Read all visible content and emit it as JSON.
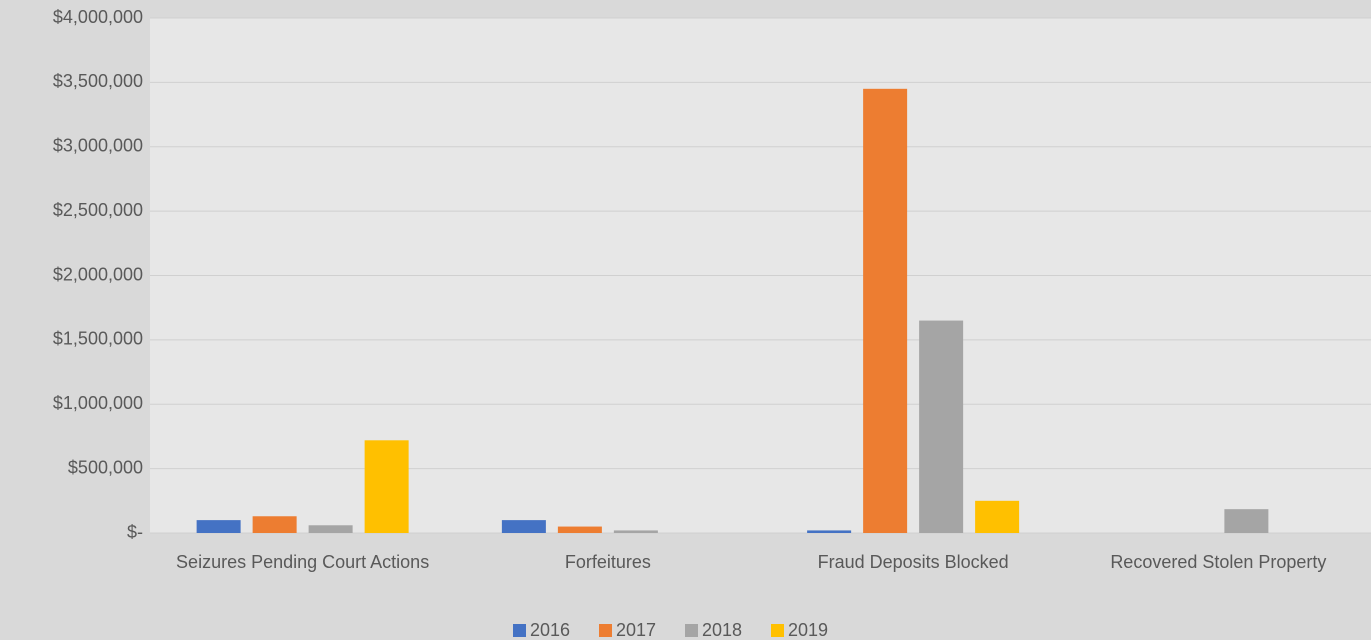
{
  "chart_data": {
    "type": "bar",
    "categories": [
      "Seizures Pending Court Actions",
      "Forfeitures",
      "Fraud Deposits Blocked",
      "Recovered Stolen Property"
    ],
    "series": [
      {
        "name": "2016",
        "color": "#4472c4",
        "values": [
          100000,
          100000,
          20000,
          null
        ]
      },
      {
        "name": "2017",
        "color": "#ed7d31",
        "values": [
          130000,
          50000,
          3450000,
          null
        ]
      },
      {
        "name": "2018",
        "color": "#a5a5a5",
        "values": [
          60000,
          20000,
          1650000,
          185000
        ]
      },
      {
        "name": "2019",
        "color": "#ffc000",
        "values": [
          720000,
          null,
          250000,
          null
        ]
      }
    ],
    "ylim": [
      0,
      4000000
    ],
    "yticks": [
      {
        "value": 0,
        "label": "$-"
      },
      {
        "value": 500000,
        "label": "$500,000"
      },
      {
        "value": 1000000,
        "label": "$1,000,000"
      },
      {
        "value": 1500000,
        "label": "$1,500,000"
      },
      {
        "value": 2000000,
        "label": "$2,000,000"
      },
      {
        "value": 2500000,
        "label": "$2,500,000"
      },
      {
        "value": 3000000,
        "label": "$3,000,000"
      },
      {
        "value": 3500000,
        "label": "$3,500,000"
      },
      {
        "value": 4000000,
        "label": "$4,000,000"
      }
    ],
    "grid": true,
    "legend": "bottom"
  }
}
